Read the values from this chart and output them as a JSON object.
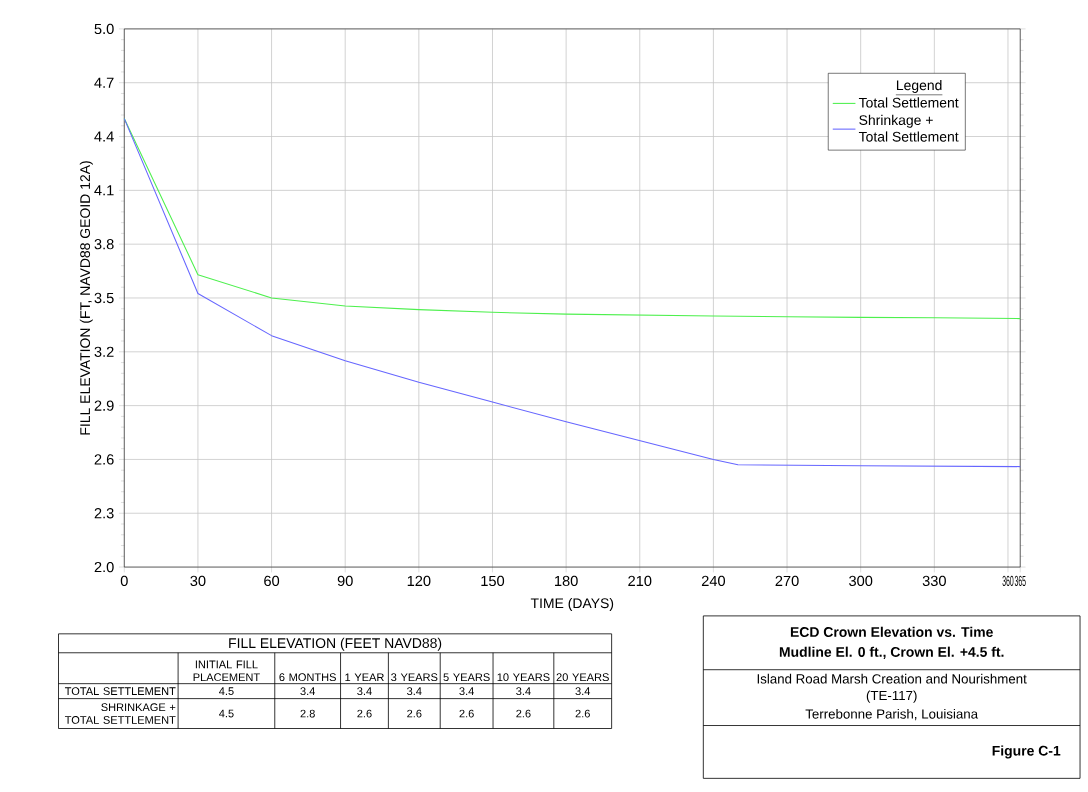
{
  "chart_data": [
    {
      "type": "line",
      "xlabel": "TIME (DAYS)",
      "ylabel": "FILL ELEVATION (FT, NAVD88 GEOID 12A)",
      "legend_title": "Legend",
      "legend": "top right",
      "grid": true,
      "xlim": [
        0,
        365
      ],
      "ylim": [
        2.0,
        5.0
      ],
      "xticks": [
        0,
        30,
        60,
        90,
        120,
        150,
        180,
        210,
        240,
        270,
        300,
        330,
        360,
        365
      ],
      "yticks": [
        {
          "value": 2.0,
          "label": "2.0"
        },
        2.3,
        2.6,
        2.9,
        3.2,
        3.5,
        3.8,
        4.1,
        4.4,
        4.7,
        {
          "value": 5.0,
          "label": "5.0"
        }
      ],
      "series": [
        {
          "name": "Total Settlement",
          "color": "#4ef04e",
          "x": [
            0,
            30,
            60,
            90,
            120,
            150,
            180,
            210,
            240,
            270,
            300,
            330,
            365
          ],
          "values": [
            4.5,
            3.63,
            3.5,
            3.455,
            3.435,
            3.42,
            3.41,
            3.405,
            3.4,
            3.395,
            3.392,
            3.39,
            3.385
          ]
        },
        {
          "name": "Shrinkage + Total Settlement",
          "color": "#6666ff",
          "x": [
            0,
            30,
            60,
            90,
            120,
            150,
            180,
            210,
            240,
            250,
            300,
            365
          ],
          "values": [
            4.5,
            3.525,
            3.29,
            3.15,
            3.03,
            2.92,
            2.81,
            2.705,
            2.6,
            2.57,
            2.565,
            2.56
          ]
        }
      ]
    },
    {
      "type": "other",
      "title": "FILL ELEVATION (FEET NAVD88)",
      "categories": [
        "INITIAL FILL PLACEMENT",
        "6 MONTHS",
        "1 YEAR",
        "3 YEARS",
        "5 YEARS",
        "10 YEARS",
        "20 YEARS"
      ],
      "data_labels": true,
      "series": [
        {
          "name": "TOTAL SETTLEMENT",
          "values": [
            4.5,
            3.4,
            3.4,
            3.4,
            3.4,
            3.4,
            3.4
          ]
        },
        {
          "name": "SHRINKAGE + TOTAL SETTLEMENT",
          "values": [
            4.5,
            2.8,
            2.6,
            2.6,
            2.6,
            2.6,
            2.6
          ]
        }
      ]
    },
    {
      "type": "other",
      "title": "ECD Crown Elevation vs. Time",
      "subtitle": "Mudline El. 0 ft., Crown El. +4.5 ft.",
      "annotations": [
        "Island Road Marsh Creation and Nourishment",
        "(TE-117)",
        "Terrebonne Parish, Louisiana",
        "Figure C-1"
      ]
    }
  ]
}
